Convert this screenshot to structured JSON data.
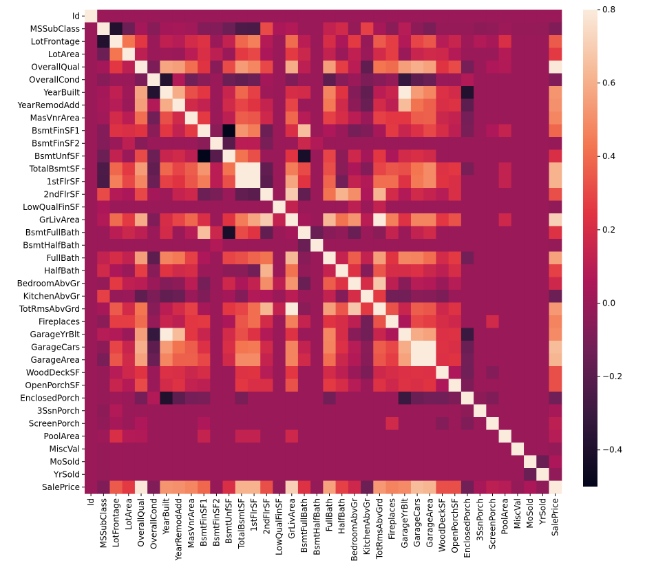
{
  "chart_data": {
    "type": "heatmap",
    "title": "",
    "xlabel": "",
    "ylabel": "",
    "variables": [
      "Id",
      "MSSubClass",
      "LotFrontage",
      "LotArea",
      "OverallQual",
      "OverallCond",
      "YearBuilt",
      "YearRemodAdd",
      "MasVnrArea",
      "BsmtFinSF1",
      "BsmtFinSF2",
      "BsmtUnfSF",
      "TotalBsmtSF",
      "1stFlrSF",
      "2ndFlrSF",
      "LowQualFinSF",
      "GrLivArea",
      "BsmtFullBath",
      "BsmtHalfBath",
      "FullBath",
      "HalfBath",
      "BedroomAbvGr",
      "KitchenAbvGr",
      "TotRmsAbvGrd",
      "Fireplaces",
      "GarageYrBlt",
      "GarageCars",
      "GarageArea",
      "WoodDeckSF",
      "OpenPorchSF",
      "EnclosedPorch",
      "3SsnPorch",
      "ScreenPorch",
      "PoolArea",
      "MiscVal",
      "MoSold",
      "YrSold",
      "SalePrice"
    ],
    "correlations": {
      "MSSubClass": {
        "LotFrontage": -0.39,
        "LotArea": -0.14,
        "OverallQual": 0.03,
        "OverallCond": -0.06,
        "YearBuilt": 0.03,
        "YearRemodAdd": 0.04,
        "MasVnrArea": 0.02,
        "BsmtFinSF1": -0.07,
        "BsmtFinSF2": -0.07,
        "BsmtUnfSF": -0.14,
        "TotalBsmtSF": -0.24,
        "1stFlrSF": -0.25,
        "2ndFlrSF": 0.31,
        "LowQualFinSF": 0.05,
        "GrLivArea": 0.07,
        "BsmtFullBath": 0.0,
        "BsmtHalfBath": -0.0,
        "FullBath": 0.13,
        "HalfBath": 0.18,
        "BedroomAbvGr": -0.02,
        "KitchenAbvGr": 0.28,
        "TotRmsAbvGrd": 0.04,
        "Fireplaces": -0.05,
        "GarageYrBlt": 0.09,
        "GarageCars": -0.04,
        "GarageArea": -0.1,
        "WoodDeckSF": -0.01,
        "OpenPorchSF": -0.01,
        "EnclosedPorch": -0.01,
        "3SsnPorch": -0.04,
        "ScreenPorch": -0.03,
        "PoolArea": 0.01,
        "MiscVal": -0.01,
        "MoSold": -0.01,
        "YrSold": -0.02,
        "SalePrice": -0.08
      },
      "LotFrontage": {
        "LotArea": 0.43,
        "OverallQual": 0.25,
        "YearBuilt": 0.12,
        "YearRemodAdd": 0.09,
        "MasVnrArea": 0.19,
        "BsmtFinSF1": 0.23,
        "BsmtUnfSF": 0.13,
        "TotalBsmtSF": 0.39,
        "1stFlrSF": 0.46,
        "2ndFlrSF": 0.08,
        "GrLivArea": 0.4,
        "BsmtFullBath": 0.1,
        "FullBath": 0.2,
        "HalfBath": 0.05,
        "BedroomAbvGr": 0.26,
        "KitchenAbvGr": -0.01,
        "TotRmsAbvGrd": 0.35,
        "Fireplaces": 0.27,
        "GarageYrBlt": 0.07,
        "GarageCars": 0.29,
        "GarageArea": 0.34,
        "WoodDeckSF": 0.09,
        "OpenPorchSF": 0.15,
        "EnclosedPorch": 0.01,
        "3SsnPorch": 0.07,
        "ScreenPorch": 0.04,
        "PoolArea": 0.21,
        "SalePrice": 0.35
      },
      "LotArea": {
        "OverallQual": 0.11,
        "YearBuilt": 0.01,
        "MasVnrArea": 0.1,
        "BsmtFinSF1": 0.21,
        "BsmtFinSF2": 0.11,
        "TotalBsmtSF": 0.26,
        "1stFlrSF": 0.3,
        "2ndFlrSF": 0.05,
        "GrLivArea": 0.26,
        "BsmtFullBath": 0.16,
        "FullBath": 0.13,
        "BedroomAbvGr": 0.12,
        "TotRmsAbvGrd": 0.19,
        "Fireplaces": 0.27,
        "GarageCars": 0.15,
        "GarageArea": 0.18,
        "WoodDeckSF": 0.17,
        "OpenPorchSF": 0.08,
        "PoolArea": 0.08,
        "SalePrice": 0.26
      },
      "OverallQual": {
        "OverallCond": -0.09,
        "YearBuilt": 0.57,
        "YearRemodAdd": 0.55,
        "MasVnrArea": 0.41,
        "BsmtFinSF1": 0.24,
        "BsmtFinSF2": -0.06,
        "BsmtUnfSF": 0.31,
        "TotalBsmtSF": 0.54,
        "1stFlrSF": 0.48,
        "2ndFlrSF": 0.3,
        "GrLivArea": 0.59,
        "BsmtFullBath": 0.11,
        "FullBath": 0.55,
        "HalfBath": 0.27,
        "BedroomAbvGr": 0.1,
        "KitchenAbvGr": -0.18,
        "TotRmsAbvGrd": 0.43,
        "Fireplaces": 0.4,
        "GarageYrBlt": 0.55,
        "GarageCars": 0.6,
        "GarageArea": 0.56,
        "WoodDeckSF": 0.24,
        "OpenPorchSF": 0.31,
        "EnclosedPorch": -0.11,
        "ScreenPorch": 0.06,
        "PoolArea": 0.07,
        "SalePrice": 0.79
      },
      "OverallCond": {
        "YearBuilt": -0.38,
        "YearRemodAdd": 0.07,
        "MasVnrArea": -0.13,
        "BsmtFinSF1": -0.05,
        "BsmtUnfSF": -0.14,
        "TotalBsmtSF": -0.17,
        "1stFlrSF": -0.14,
        "2ndFlrSF": 0.03,
        "GrLivArea": -0.08,
        "FullBath": -0.19,
        "HalfBath": -0.06,
        "KitchenAbvGr": -0.09,
        "TotRmsAbvGrd": -0.06,
        "Fireplaces": -0.02,
        "GarageYrBlt": -0.32,
        "GarageCars": -0.19,
        "GarageArea": -0.15,
        "EnclosedPorch": 0.07,
        "SalePrice": -0.08
      },
      "YearBuilt": {
        "YearRemodAdd": 0.59,
        "MasVnrArea": 0.32,
        "BsmtFinSF1": 0.25,
        "BsmtUnfSF": 0.15,
        "TotalBsmtSF": 0.39,
        "1stFlrSF": 0.28,
        "2ndFlrSF": 0.01,
        "GrLivArea": 0.2,
        "BsmtFullBath": 0.19,
        "FullBath": 0.47,
        "HalfBath": 0.24,
        "BedroomAbvGr": -0.07,
        "KitchenAbvGr": -0.17,
        "TotRmsAbvGrd": 0.1,
        "Fireplaces": 0.15,
        "GarageYrBlt": 0.83,
        "GarageCars": 0.54,
        "GarageArea": 0.48,
        "WoodDeckSF": 0.22,
        "OpenPorchSF": 0.19,
        "EnclosedPorch": -0.39,
        "SalePrice": 0.52
      },
      "YearRemodAdd": {
        "MasVnrArea": 0.18,
        "BsmtFinSF1": 0.13,
        "BsmtUnfSF": 0.18,
        "TotalBsmtSF": 0.29,
        "1stFlrSF": 0.24,
        "2ndFlrSF": 0.14,
        "GrLivArea": 0.29,
        "FullBath": 0.44,
        "HalfBath": 0.18,
        "BedroomAbvGr": -0.04,
        "KitchenAbvGr": -0.15,
        "TotRmsAbvGrd": 0.19,
        "Fireplaces": 0.11,
        "GarageYrBlt": 0.64,
        "GarageCars": 0.42,
        "GarageArea": 0.37,
        "WoodDeckSF": 0.21,
        "OpenPorchSF": 0.23,
        "EnclosedPorch": -0.19,
        "SalePrice": 0.51
      },
      "MasVnrArea": {
        "BsmtFinSF1": 0.26,
        "BsmtUnfSF": 0.11,
        "TotalBsmtSF": 0.36,
        "1stFlrSF": 0.34,
        "2ndFlrSF": 0.17,
        "GrLivArea": 0.39,
        "BsmtFullBath": 0.09,
        "FullBath": 0.28,
        "HalfBath": 0.2,
        "BedroomAbvGr": 0.1,
        "TotRmsAbvGrd": 0.28,
        "Fireplaces": 0.25,
        "GarageYrBlt": 0.25,
        "GarageCars": 0.36,
        "GarageArea": 0.37,
        "WoodDeckSF": 0.16,
        "OpenPorchSF": 0.13,
        "EnclosedPorch": -0.11,
        "SalePrice": 0.48
      },
      "BsmtFinSF1": {
        "BsmtFinSF2": -0.05,
        "BsmtUnfSF": -0.5,
        "TotalBsmtSF": 0.52,
        "1stFlrSF": 0.45,
        "2ndFlrSF": -0.14,
        "GrLivArea": 0.21,
        "BsmtFullBath": 0.65,
        "FullBath": 0.06,
        "HalfBath": 0.0,
        "BedroomAbvGr": -0.11,
        "KitchenAbvGr": -0.08,
        "TotRmsAbvGrd": 0.04,
        "Fireplaces": 0.26,
        "GarageYrBlt": 0.15,
        "GarageCars": 0.22,
        "GarageArea": 0.3,
        "WoodDeckSF": 0.2,
        "OpenPorchSF": 0.11,
        "EnclosedPorch": -0.1,
        "ScreenPorch": 0.06,
        "PoolArea": 0.14,
        "SalePrice": 0.39
      },
      "BsmtFinSF2": {
        "BsmtUnfSF": -0.21,
        "TotalBsmtSF": 0.1,
        "1stFlrSF": 0.1,
        "2ndFlrSF": -0.1,
        "BsmtFullBath": 0.16,
        "BsmtHalfBath": 0.07,
        "SalePrice": -0.01
      },
      "BsmtUnfSF": {
        "TotalBsmtSF": 0.42,
        "1stFlrSF": 0.32,
        "2ndFlrSF": 0.0,
        "GrLivArea": 0.24,
        "BsmtFullBath": -0.42,
        "FullBath": 0.29,
        "HalfBath": -0.04,
        "BedroomAbvGr": 0.17,
        "KitchenAbvGr": 0.03,
        "TotRmsAbvGrd": 0.25,
        "Fireplaces": 0.05,
        "GarageYrBlt": 0.19,
        "GarageCars": 0.21,
        "GarageArea": 0.18,
        "SalePrice": 0.21
      },
      "TotalBsmtSF": {
        "1stFlrSF": 0.82,
        "2ndFlrSF": -0.17,
        "GrLivArea": 0.45,
        "BsmtFullBath": 0.31,
        "FullBath": 0.32,
        "HalfBath": -0.05,
        "BedroomAbvGr": 0.05,
        "KitchenAbvGr": -0.07,
        "TotRmsAbvGrd": 0.29,
        "Fireplaces": 0.34,
        "GarageYrBlt": 0.32,
        "GarageCars": 0.43,
        "GarageArea": 0.49,
        "WoodDeckSF": 0.23,
        "OpenPorchSF": 0.25,
        "EnclosedPorch": -0.1,
        "PoolArea": 0.13,
        "SalePrice": 0.61
      },
      "1stFlrSF": {
        "2ndFlrSF": -0.2,
        "GrLivArea": 0.57,
        "BsmtFullBath": 0.24,
        "FullBath": 0.38,
        "HalfBath": -0.12,
        "BedroomAbvGr": 0.13,
        "KitchenAbvGr": 0.07,
        "TotRmsAbvGrd": 0.41,
        "Fireplaces": 0.41,
        "GarageYrBlt": 0.23,
        "GarageCars": 0.44,
        "GarageArea": 0.49,
        "WoodDeckSF": 0.24,
        "OpenPorchSF": 0.21,
        "PoolArea": 0.13,
        "SalePrice": 0.61
      },
      "2ndFlrSF": {
        "GrLivArea": 0.69,
        "BsmtFullBath": -0.17,
        "FullBath": 0.42,
        "HalfBath": 0.61,
        "BedroomAbvGr": 0.5,
        "KitchenAbvGr": 0.06,
        "TotRmsAbvGrd": 0.62,
        "Fireplaces": 0.19,
        "GarageYrBlt": 0.07,
        "GarageCars": 0.18,
        "GarageArea": 0.14,
        "WoodDeckSF": 0.09,
        "OpenPorchSF": 0.21,
        "SalePrice": 0.32
      },
      "LowQualFinSF": {
        "GrLivArea": 0.13,
        "FullBath": 0.0,
        "BedroomAbvGr": 0.11,
        "TotRmsAbvGrd": 0.13,
        "SalePrice": -0.03
      },
      "GrLivArea": {
        "BsmtFullBath": 0.03,
        "FullBath": 0.63,
        "HalfBath": 0.42,
        "BedroomAbvGr": 0.52,
        "KitchenAbvGr": 0.1,
        "TotRmsAbvGrd": 0.83,
        "Fireplaces": 0.46,
        "GarageYrBlt": 0.23,
        "GarageCars": 0.47,
        "GarageArea": 0.47,
        "WoodDeckSF": 0.25,
        "OpenPorchSF": 0.33,
        "PoolArea": 0.17,
        "SalePrice": 0.71
      },
      "BsmtFullBath": {
        "BsmtHalfBath": -0.15,
        "FullBath": -0.06,
        "HalfBath": -0.03,
        "BedroomAbvGr": -0.15,
        "TotRmsAbvGrd": -0.05,
        "Fireplaces": 0.14,
        "GarageCars": 0.13,
        "GarageArea": 0.18,
        "SalePrice": 0.23
      },
      "BsmtHalfBath": {
        "SalePrice": -0.02
      },
      "FullBath": {
        "HalfBath": 0.14,
        "BedroomAbvGr": 0.36,
        "KitchenAbvGr": 0.13,
        "TotRmsAbvGrd": 0.55,
        "Fireplaces": 0.24,
        "GarageYrBlt": 0.48,
        "GarageCars": 0.47,
        "GarageArea": 0.41,
        "WoodDeckSF": 0.19,
        "OpenPorchSF": 0.26,
        "EnclosedPorch": -0.12,
        "SalePrice": 0.56
      },
      "HalfBath": {
        "BedroomAbvGr": 0.23,
        "KitchenAbvGr": -0.07,
        "TotRmsAbvGrd": 0.34,
        "Fireplaces": 0.2,
        "GarageYrBlt": 0.2,
        "GarageCars": 0.22,
        "GarageArea": 0.16,
        "WoodDeckSF": 0.11,
        "OpenPorchSF": 0.2,
        "SalePrice": 0.28
      },
      "BedroomAbvGr": {
        "KitchenAbvGr": 0.2,
        "TotRmsAbvGrd": 0.68,
        "Fireplaces": 0.11,
        "GarageYrBlt": -0.06,
        "GarageCars": 0.09,
        "GarageArea": 0.07,
        "OpenPorchSF": 0.09,
        "SalePrice": 0.17
      },
      "KitchenAbvGr": {
        "TotRmsAbvGrd": 0.26,
        "Fireplaces": -0.12,
        "GarageYrBlt": -0.12,
        "GarageCars": -0.05,
        "GarageArea": -0.06,
        "WoodDeckSF": -0.09,
        "SalePrice": -0.14
      },
      "TotRmsAbvGrd": {
        "Fireplaces": 0.33,
        "GarageYrBlt": 0.15,
        "GarageCars": 0.36,
        "GarageArea": 0.34,
        "WoodDeckSF": 0.17,
        "OpenPorchSF": 0.23,
        "SalePrice": 0.53
      },
      "Fireplaces": {
        "GarageYrBlt": 0.05,
        "GarageCars": 0.3,
        "GarageArea": 0.27,
        "WoodDeckSF": 0.2,
        "OpenPorchSF": 0.17,
        "ScreenPorch": 0.18,
        "SalePrice": 0.47
      },
      "GarageYrBlt": {
        "GarageCars": 0.59,
        "GarageArea": 0.56,
        "WoodDeckSF": 0.22,
        "OpenPorchSF": 0.23,
        "EnclosedPorch": -0.3,
        "SalePrice": 0.49
      },
      "GarageCars": {
        "GarageArea": 0.88,
        "WoodDeckSF": 0.23,
        "OpenPorchSF": 0.21,
        "EnclosedPorch": -0.15,
        "SalePrice": 0.64
      },
      "GarageArea": {
        "WoodDeckSF": 0.22,
        "OpenPorchSF": 0.24,
        "EnclosedPorch": -0.12,
        "SalePrice": 0.62
      },
      "WoodDeckSF": {
        "OpenPorchSF": 0.06,
        "EnclosedPorch": -0.13,
        "ScreenPorch": -0.07,
        "SalePrice": 0.32
      },
      "OpenPorchSF": {
        "EnclosedPorch": -0.09,
        "SalePrice": 0.32
      },
      "EnclosedPorch": {
        "3SsnPorch": -0.04,
        "ScreenPorch": -0.08,
        "SalePrice": -0.13
      },
      "3SsnPorch": {
        "SalePrice": 0.04
      },
      "ScreenPorch": {
        "SalePrice": 0.11
      },
      "PoolArea": {
        "SalePrice": 0.09
      },
      "MiscVal": {
        "SalePrice": -0.02
      },
      "MoSold": {
        "YrSold": -0.15,
        "SalePrice": 0.05
      },
      "YrSold": {
        "SalePrice": -0.03
      }
    },
    "default_correlation": 0.0,
    "colorbar": {
      "vmin": -0.5,
      "vmax": 0.8,
      "ticks": [
        -0.4,
        -0.2,
        0.0,
        0.2,
        0.4,
        0.6,
        0.8
      ],
      "tick_labels": [
        "−0.4",
        "−0.2",
        "0.0",
        "0.2",
        "0.4",
        "0.6",
        "0.8"
      ],
      "colormap": "rocket",
      "color_stops": [
        "#03051a",
        "#36193e",
        "#701f57",
        "#ad1759",
        "#e13342",
        "#f37651",
        "#f6b48f",
        "#faebdd"
      ]
    }
  }
}
